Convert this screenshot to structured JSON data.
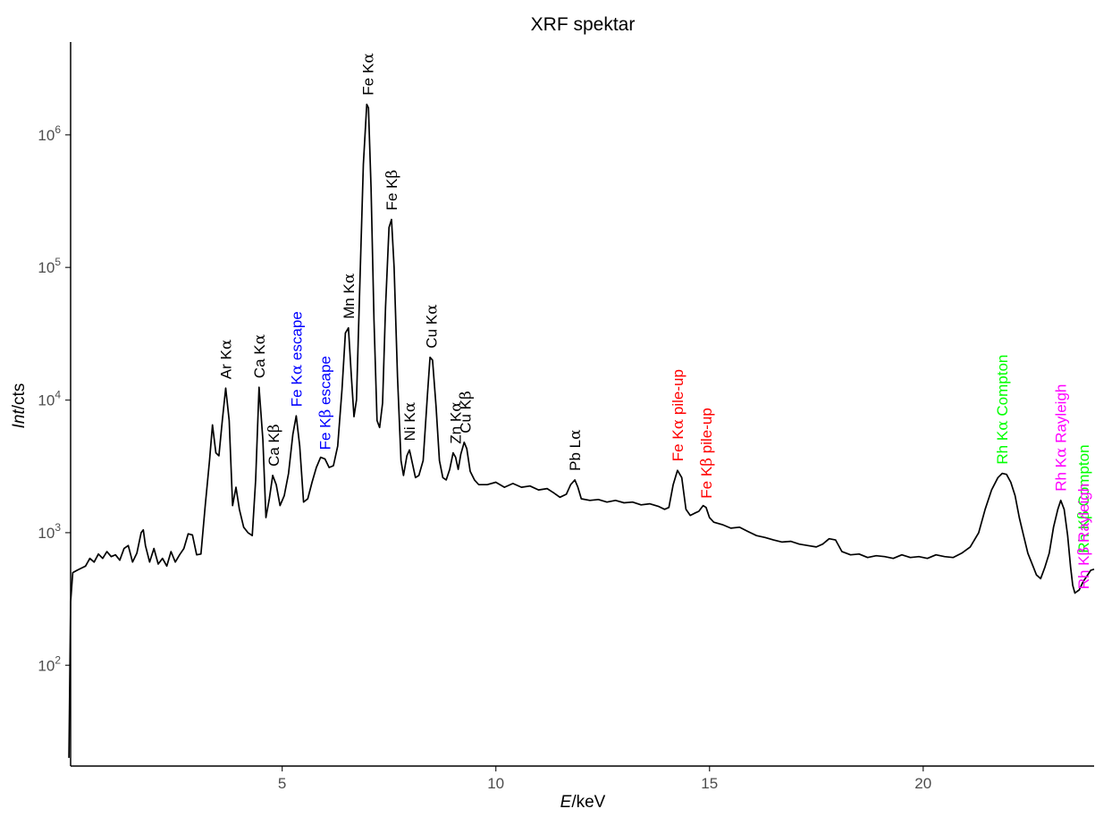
{
  "chart_data": {
    "type": "line",
    "title": "XRF spektar",
    "xlabel": {
      "italic": "E",
      "rest": "/keV"
    },
    "ylabel": {
      "italic": "Int",
      "rest": "/cts"
    },
    "x_range": [
      0.05,
      24.0
    ],
    "ylim_log10": [
      1.24,
      6.7
    ],
    "y_scale": "log10",
    "grid": false,
    "x_ticks": [
      {
        "value": 5,
        "label": "5"
      },
      {
        "value": 10,
        "label": "10"
      },
      {
        "value": 15,
        "label": "15"
      },
      {
        "value": 20,
        "label": "20"
      }
    ],
    "y_ticks": [
      {
        "value": 100,
        "base": "10",
        "exp": "2"
      },
      {
        "value": 1000,
        "base": "10",
        "exp": "3"
      },
      {
        "value": 10000,
        "base": "10",
        "exp": "4"
      },
      {
        "value": 100000,
        "base": "10",
        "exp": "5"
      },
      {
        "value": 1000000,
        "base": "10",
        "exp": "6"
      }
    ],
    "series": [
      {
        "color": "#000000",
        "points": [
          [
            0.01,
            20
          ],
          [
            0.05,
            300
          ],
          [
            0.1,
            500
          ],
          [
            0.2,
            520
          ],
          [
            0.3,
            540
          ],
          [
            0.4,
            560
          ],
          [
            0.5,
            640
          ],
          [
            0.6,
            600
          ],
          [
            0.7,
            690
          ],
          [
            0.8,
            640
          ],
          [
            0.9,
            720
          ],
          [
            1.0,
            660
          ],
          [
            1.1,
            680
          ],
          [
            1.2,
            620
          ],
          [
            1.3,
            760
          ],
          [
            1.4,
            800
          ],
          [
            1.5,
            600
          ],
          [
            1.6,
            700
          ],
          [
            1.7,
            1000
          ],
          [
            1.75,
            1050
          ],
          [
            1.8,
            800
          ],
          [
            1.9,
            600
          ],
          [
            2.0,
            760
          ],
          [
            2.1,
            580
          ],
          [
            2.2,
            640
          ],
          [
            2.3,
            560
          ],
          [
            2.4,
            720
          ],
          [
            2.5,
            600
          ],
          [
            2.6,
            680
          ],
          [
            2.7,
            760
          ],
          [
            2.8,
            980
          ],
          [
            2.9,
            960
          ],
          [
            3.0,
            680
          ],
          [
            3.1,
            690
          ],
          [
            3.2,
            1600
          ],
          [
            3.3,
            3500
          ],
          [
            3.37,
            6500
          ],
          [
            3.45,
            4000
          ],
          [
            3.52,
            3800
          ],
          [
            3.6,
            7000
          ],
          [
            3.68,
            12300
          ],
          [
            3.76,
            7000
          ],
          [
            3.84,
            1600
          ],
          [
            3.92,
            2200
          ],
          [
            4.0,
            1500
          ],
          [
            4.1,
            1100
          ],
          [
            4.2,
            1000
          ],
          [
            4.3,
            950
          ],
          [
            4.38,
            2500
          ],
          [
            4.46,
            12500
          ],
          [
            4.55,
            5000
          ],
          [
            4.62,
            1300
          ],
          [
            4.7,
            1800
          ],
          [
            4.78,
            2700
          ],
          [
            4.86,
            2300
          ],
          [
            4.95,
            1600
          ],
          [
            5.05,
            1900
          ],
          [
            5.15,
            2800
          ],
          [
            5.25,
            5500
          ],
          [
            5.33,
            7600
          ],
          [
            5.41,
            4500
          ],
          [
            5.5,
            1700
          ],
          [
            5.6,
            1800
          ],
          [
            5.7,
            2400
          ],
          [
            5.8,
            3100
          ],
          [
            5.9,
            3700
          ],
          [
            6.0,
            3600
          ],
          [
            6.1,
            3100
          ],
          [
            6.2,
            3200
          ],
          [
            6.3,
            4500
          ],
          [
            6.4,
            12000
          ],
          [
            6.48,
            32000
          ],
          [
            6.55,
            35000
          ],
          [
            6.62,
            15000
          ],
          [
            6.68,
            7500
          ],
          [
            6.74,
            10000
          ],
          [
            6.82,
            80000
          ],
          [
            6.9,
            600000
          ],
          [
            6.98,
            1700000
          ],
          [
            7.02,
            1600000
          ],
          [
            7.08,
            400000
          ],
          [
            7.15,
            40000
          ],
          [
            7.22,
            7000
          ],
          [
            7.28,
            6200
          ],
          [
            7.35,
            9500
          ],
          [
            7.42,
            50000
          ],
          [
            7.5,
            200000
          ],
          [
            7.56,
            230000
          ],
          [
            7.62,
            100000
          ],
          [
            7.7,
            15000
          ],
          [
            7.78,
            3500
          ],
          [
            7.84,
            2700
          ],
          [
            7.92,
            3800
          ],
          [
            7.98,
            4200
          ],
          [
            8.05,
            3300
          ],
          [
            8.12,
            2600
          ],
          [
            8.2,
            2700
          ],
          [
            8.3,
            3500
          ],
          [
            8.4,
            11000
          ],
          [
            8.46,
            21000
          ],
          [
            8.52,
            20000
          ],
          [
            8.6,
            9000
          ],
          [
            8.68,
            3500
          ],
          [
            8.76,
            2600
          ],
          [
            8.84,
            2500
          ],
          [
            8.92,
            3000
          ],
          [
            9.0,
            4000
          ],
          [
            9.06,
            3700
          ],
          [
            9.12,
            3000
          ],
          [
            9.18,
            3900
          ],
          [
            9.26,
            4800
          ],
          [
            9.32,
            4300
          ],
          [
            9.4,
            2900
          ],
          [
            9.5,
            2500
          ],
          [
            9.6,
            2300
          ],
          [
            9.8,
            2300
          ],
          [
            10.0,
            2400
          ],
          [
            10.2,
            2200
          ],
          [
            10.4,
            2350
          ],
          [
            10.6,
            2200
          ],
          [
            10.8,
            2250
          ],
          [
            11.0,
            2100
          ],
          [
            11.2,
            2150
          ],
          [
            11.35,
            2000
          ],
          [
            11.5,
            1850
          ],
          [
            11.65,
            1950
          ],
          [
            11.75,
            2300
          ],
          [
            11.85,
            2500
          ],
          [
            11.92,
            2200
          ],
          [
            12.0,
            1800
          ],
          [
            12.2,
            1750
          ],
          [
            12.4,
            1780
          ],
          [
            12.6,
            1700
          ],
          [
            12.8,
            1750
          ],
          [
            13.0,
            1680
          ],
          [
            13.2,
            1700
          ],
          [
            13.4,
            1620
          ],
          [
            13.6,
            1650
          ],
          [
            13.8,
            1580
          ],
          [
            13.95,
            1500
          ],
          [
            14.05,
            1550
          ],
          [
            14.15,
            2300
          ],
          [
            14.25,
            2950
          ],
          [
            14.35,
            2600
          ],
          [
            14.45,
            1500
          ],
          [
            14.55,
            1350
          ],
          [
            14.65,
            1400
          ],
          [
            14.75,
            1450
          ],
          [
            14.85,
            1600
          ],
          [
            14.92,
            1550
          ],
          [
            15.0,
            1300
          ],
          [
            15.1,
            1200
          ],
          [
            15.3,
            1150
          ],
          [
            15.5,
            1080
          ],
          [
            15.7,
            1100
          ],
          [
            15.9,
            1020
          ],
          [
            16.1,
            950
          ],
          [
            16.3,
            920
          ],
          [
            16.5,
            880
          ],
          [
            16.7,
            850
          ],
          [
            16.9,
            860
          ],
          [
            17.1,
            820
          ],
          [
            17.3,
            800
          ],
          [
            17.5,
            780
          ],
          [
            17.65,
            820
          ],
          [
            17.8,
            900
          ],
          [
            17.95,
            880
          ],
          [
            18.1,
            720
          ],
          [
            18.3,
            680
          ],
          [
            18.5,
            690
          ],
          [
            18.7,
            650
          ],
          [
            18.9,
            670
          ],
          [
            19.1,
            660
          ],
          [
            19.3,
            640
          ],
          [
            19.5,
            680
          ],
          [
            19.7,
            650
          ],
          [
            19.9,
            660
          ],
          [
            20.1,
            640
          ],
          [
            20.3,
            680
          ],
          [
            20.5,
            660
          ],
          [
            20.7,
            650
          ],
          [
            20.9,
            700
          ],
          [
            21.1,
            780
          ],
          [
            21.3,
            1000
          ],
          [
            21.45,
            1500
          ],
          [
            21.6,
            2100
          ],
          [
            21.75,
            2600
          ],
          [
            21.85,
            2800
          ],
          [
            21.95,
            2750
          ],
          [
            22.05,
            2400
          ],
          [
            22.15,
            1900
          ],
          [
            22.25,
            1300
          ],
          [
            22.35,
            950
          ],
          [
            22.45,
            700
          ],
          [
            22.55,
            580
          ],
          [
            22.65,
            480
          ],
          [
            22.75,
            450
          ],
          [
            22.85,
            550
          ],
          [
            22.95,
            700
          ],
          [
            23.05,
            1100
          ],
          [
            23.15,
            1500
          ],
          [
            23.22,
            1750
          ],
          [
            23.3,
            1500
          ],
          [
            23.38,
            950
          ],
          [
            23.45,
            550
          ],
          [
            23.5,
            400
          ],
          [
            23.55,
            350
          ],
          [
            23.6,
            360
          ],
          [
            23.65,
            370
          ],
          [
            23.75,
            430
          ],
          [
            23.85,
            480
          ],
          [
            23.92,
            520
          ],
          [
            24.0,
            530
          ]
        ]
      }
    ],
    "annotations": [
      {
        "parts": [
          {
            "t": "Ar K"
          },
          {
            "t": "α",
            "serif": true
          }
        ],
        "x": 3.68,
        "y": 12300,
        "color": "#000000"
      },
      {
        "parts": [
          {
            "t": "Ca K"
          },
          {
            "t": "α",
            "serif": true
          }
        ],
        "x": 4.46,
        "y": 12500,
        "color": "#000000"
      },
      {
        "parts": [
          {
            "t": "Ca K"
          },
          {
            "t": "β",
            "serif": true
          }
        ],
        "x": 4.8,
        "y": 2700,
        "color": "#000000"
      },
      {
        "parts": [
          {
            "t": "Fe K"
          },
          {
            "t": "α",
            "serif": true
          },
          {
            "t": " escape"
          }
        ],
        "x": 5.33,
        "y": 7600,
        "color": "#0000ff"
      },
      {
        "parts": [
          {
            "t": "Fe K"
          },
          {
            "t": "β",
            "serif": true
          },
          {
            "t": " escape"
          }
        ],
        "x": 6.0,
        "y": 3600,
        "color": "#0000ff"
      },
      {
        "parts": [
          {
            "t": "Mn K"
          },
          {
            "t": "α",
            "serif": true
          }
        ],
        "x": 6.55,
        "y": 35000,
        "color": "#000000"
      },
      {
        "parts": [
          {
            "t": "Fe K"
          },
          {
            "t": "α",
            "serif": true
          }
        ],
        "x": 7.0,
        "y": 1700000,
        "color": "#000000"
      },
      {
        "parts": [
          {
            "t": "Fe K"
          },
          {
            "t": "β",
            "serif": true
          }
        ],
        "x": 7.56,
        "y": 230000,
        "color": "#000000"
      },
      {
        "parts": [
          {
            "t": "Ni K"
          },
          {
            "t": "α",
            "serif": true
          }
        ],
        "x": 7.98,
        "y": 4200,
        "color": "#000000"
      },
      {
        "parts": [
          {
            "t": "Cu K"
          },
          {
            "t": "α",
            "serif": true
          }
        ],
        "x": 8.49,
        "y": 21000,
        "color": "#000000"
      },
      {
        "parts": [
          {
            "t": "Zn K"
          },
          {
            "t": "α",
            "serif": true
          }
        ],
        "x": 9.06,
        "y": 4000,
        "color": "#000000"
      },
      {
        "parts": [
          {
            "t": "Cu K"
          },
          {
            "t": "β",
            "serif": true
          }
        ],
        "x": 9.28,
        "y": 4800,
        "color": "#000000"
      },
      {
        "parts": [
          {
            "t": "Pb L"
          },
          {
            "t": "α",
            "serif": true
          }
        ],
        "x": 11.85,
        "y": 2500,
        "color": "#000000"
      },
      {
        "parts": [
          {
            "t": "Fe K"
          },
          {
            "t": "α",
            "serif": true
          },
          {
            "t": " pile-up"
          }
        ],
        "x": 14.25,
        "y": 2950,
        "color": "#ff0000"
      },
      {
        "parts": [
          {
            "t": "Fe K"
          },
          {
            "t": "β",
            "serif": true
          },
          {
            "t": " pile-up"
          }
        ],
        "x": 14.92,
        "y": 1550,
        "color": "#ff0000"
      },
      {
        "parts": [
          {
            "t": "Rh K"
          },
          {
            "t": "α",
            "serif": true
          },
          {
            "t": " Compton"
          }
        ],
        "x": 21.85,
        "y": 2800,
        "color": "#00ff00"
      },
      {
        "parts": [
          {
            "t": "Rh K"
          },
          {
            "t": "α",
            "serif": true
          },
          {
            "t": " Rayleigh"
          }
        ],
        "x": 23.22,
        "y": 1750,
        "color": "#ff00ff"
      },
      {
        "parts": [
          {
            "t": "Rh K"
          },
          {
            "t": "β",
            "serif": true
          },
          {
            "t": " Compton"
          }
        ],
        "x": 24.25,
        "y": 600,
        "color": "#00ff00"
      },
      {
        "parts": [
          {
            "t": "Rh K"
          },
          {
            "t": "β",
            "serif": true
          },
          {
            "t": " Rayleigh"
          }
        ],
        "x": 26.1,
        "y": 320,
        "color": "#ff00ff"
      }
    ]
  }
}
